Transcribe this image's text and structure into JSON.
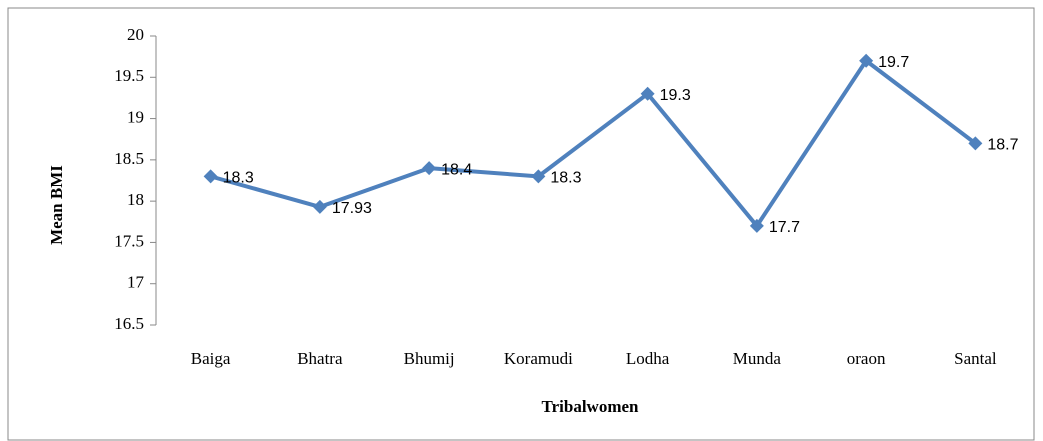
{
  "chart_data": {
    "type": "line",
    "x_label": "Tribalwomen",
    "y_label": "Mean BMI",
    "categories": [
      "Baiga",
      "Bhatra",
      "Bhumij",
      "Koramudi",
      "Lodha",
      "Munda",
      "oraon",
      "Santal"
    ],
    "values": [
      18.3,
      17.93,
      18.4,
      18.3,
      19.3,
      17.7,
      19.7,
      18.7
    ],
    "color": "#4f81bd",
    "ylim": [
      16.5,
      20
    ],
    "yticks": [
      16.5,
      17,
      17.5,
      18,
      18.5,
      19,
      19.5,
      20
    ],
    "grid": false
  }
}
